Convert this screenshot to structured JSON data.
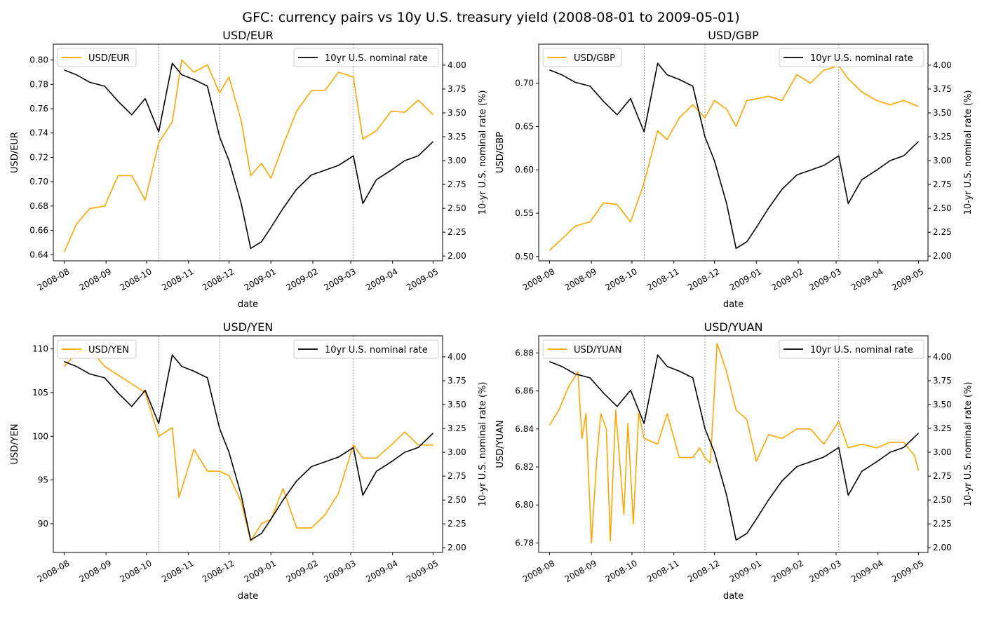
{
  "figure": {
    "title": "GFC: currency pairs vs 10y U.S. treasury yield (2008-08-01 to 2009-05-01)"
  },
  "colors": {
    "currency": "#ffa500",
    "rate": "#000000",
    "vline": "#808080"
  },
  "chart_data": [
    {
      "type": "line",
      "title": "USD/EUR",
      "xlabel": "date",
      "ylabel": "USD/EUR",
      "y2label": "10-yr U.S. nominal rate (%)",
      "x_ticks": [
        "2008-08",
        "2008-09",
        "2008-10",
        "2008-11",
        "2008-12",
        "2009-01",
        "2009-02",
        "2009-03",
        "2009-04",
        "2009-05"
      ],
      "y_ticks": [
        "0.64",
        "0.66",
        "0.68",
        "0.70",
        "0.72",
        "0.74",
        "0.76",
        "0.78",
        "0.80"
      ],
      "y2_ticks": [
        "2.00",
        "2.25",
        "2.50",
        "2.75",
        "3.00",
        "3.25",
        "3.50",
        "3.75",
        "4.00"
      ],
      "ylim": [
        0.635,
        0.813
      ],
      "y2lim": [
        1.95,
        4.22
      ],
      "legend_left": "top-left",
      "legend_right": "top-right",
      "vlines": [
        "2008-10-10",
        "2008-11-24",
        "2009-03-03"
      ],
      "series": [
        {
          "name": "USD/EUR",
          "axis": "left",
          "x": [
            "2008-08-01",
            "2008-08-10",
            "2008-08-20",
            "2008-08-31",
            "2008-09-10",
            "2008-09-20",
            "2008-09-30",
            "2008-10-10",
            "2008-10-20",
            "2008-10-27",
            "2008-11-05",
            "2008-11-15",
            "2008-11-24",
            "2008-12-01",
            "2008-12-10",
            "2008-12-17",
            "2008-12-25",
            "2009-01-01",
            "2009-01-10",
            "2009-01-20",
            "2009-01-31",
            "2009-02-10",
            "2009-02-20",
            "2009-03-03",
            "2009-03-10",
            "2009-03-20",
            "2009-03-31",
            "2009-04-10",
            "2009-04-20",
            "2009-05-01"
          ],
          "y": [
            0.642,
            0.665,
            0.678,
            0.68,
            0.705,
            0.705,
            0.685,
            0.732,
            0.749,
            0.8,
            0.79,
            0.796,
            0.773,
            0.786,
            0.75,
            0.705,
            0.715,
            0.703,
            0.73,
            0.758,
            0.775,
            0.775,
            0.79,
            0.786,
            0.735,
            0.742,
            0.758,
            0.757,
            0.767,
            0.755
          ]
        },
        {
          "name": "10yr U.S. nominal rate",
          "axis": "right",
          "x": [
            "2008-08-01",
            "2008-08-10",
            "2008-08-20",
            "2008-08-31",
            "2008-09-10",
            "2008-09-20",
            "2008-09-30",
            "2008-10-10",
            "2008-10-20",
            "2008-10-27",
            "2008-11-05",
            "2008-11-15",
            "2008-11-24",
            "2008-12-01",
            "2008-12-10",
            "2008-12-17",
            "2008-12-25",
            "2009-01-01",
            "2009-01-10",
            "2009-01-20",
            "2009-01-31",
            "2009-02-10",
            "2009-02-20",
            "2009-03-03",
            "2009-03-10",
            "2009-03-20",
            "2009-03-31",
            "2009-04-10",
            "2009-04-20",
            "2009-05-01"
          ],
          "y": [
            3.95,
            3.9,
            3.82,
            3.78,
            3.62,
            3.48,
            3.65,
            3.3,
            4.02,
            3.9,
            3.85,
            3.78,
            3.25,
            3.0,
            2.55,
            2.08,
            2.15,
            2.3,
            2.5,
            2.7,
            2.85,
            2.9,
            2.95,
            3.05,
            2.55,
            2.8,
            2.9,
            3.0,
            3.05,
            3.2
          ]
        }
      ]
    },
    {
      "type": "line",
      "title": "USD/GBP",
      "xlabel": "date",
      "ylabel": "USD/GBP",
      "y2label": "10-yr U.S. nominal rate (%)",
      "x_ticks": [
        "2008-08",
        "2008-09",
        "2008-10",
        "2008-11",
        "2008-12",
        "2009-01",
        "2009-02",
        "2009-03",
        "2009-04",
        "2009-05"
      ],
      "y_ticks": [
        "0.50",
        "0.55",
        "0.60",
        "0.65",
        "0.70"
      ],
      "y2_ticks": [
        "2.00",
        "2.25",
        "2.50",
        "2.75",
        "3.00",
        "3.25",
        "3.50",
        "3.75",
        "4.00"
      ],
      "ylim": [
        0.495,
        0.745
      ],
      "y2lim": [
        1.95,
        4.22
      ],
      "legend_left": "top-left",
      "legend_right": "top-right",
      "vlines": [
        "2008-10-10",
        "2008-11-24",
        "2009-03-03"
      ],
      "series": [
        {
          "name": "USD/GBP",
          "axis": "left",
          "x": [
            "2008-08-01",
            "2008-08-10",
            "2008-08-20",
            "2008-08-31",
            "2008-09-10",
            "2008-09-20",
            "2008-09-30",
            "2008-10-10",
            "2008-10-20",
            "2008-10-27",
            "2008-11-05",
            "2008-11-15",
            "2008-11-24",
            "2008-12-01",
            "2008-12-10",
            "2008-12-17",
            "2008-12-25",
            "2009-01-01",
            "2009-01-10",
            "2009-01-20",
            "2009-01-31",
            "2009-02-10",
            "2009-02-20",
            "2009-03-03",
            "2009-03-10",
            "2009-03-20",
            "2009-03-31",
            "2009-04-10",
            "2009-04-20",
            "2009-05-01"
          ],
          "y": [
            0.507,
            0.52,
            0.535,
            0.54,
            0.562,
            0.56,
            0.54,
            0.585,
            0.645,
            0.635,
            0.66,
            0.675,
            0.66,
            0.68,
            0.67,
            0.65,
            0.68,
            0.682,
            0.685,
            0.68,
            0.71,
            0.7,
            0.715,
            0.72,
            0.705,
            0.69,
            0.68,
            0.675,
            0.68,
            0.673
          ]
        },
        {
          "name": "10yr U.S. nominal rate",
          "axis": "right",
          "x": [
            "2008-08-01",
            "2008-08-10",
            "2008-08-20",
            "2008-08-31",
            "2008-09-10",
            "2008-09-20",
            "2008-09-30",
            "2008-10-10",
            "2008-10-20",
            "2008-10-27",
            "2008-11-05",
            "2008-11-15",
            "2008-11-24",
            "2008-12-01",
            "2008-12-10",
            "2008-12-17",
            "2008-12-25",
            "2009-01-01",
            "2009-01-10",
            "2009-01-20",
            "2009-01-31",
            "2009-02-10",
            "2009-02-20",
            "2009-03-03",
            "2009-03-10",
            "2009-03-20",
            "2009-03-31",
            "2009-04-10",
            "2009-04-20",
            "2009-05-01"
          ],
          "y": [
            3.95,
            3.9,
            3.82,
            3.78,
            3.62,
            3.48,
            3.65,
            3.3,
            4.02,
            3.9,
            3.85,
            3.78,
            3.25,
            3.0,
            2.55,
            2.08,
            2.15,
            2.3,
            2.5,
            2.7,
            2.85,
            2.9,
            2.95,
            3.05,
            2.55,
            2.8,
            2.9,
            3.0,
            3.05,
            3.2
          ]
        }
      ]
    },
    {
      "type": "line",
      "title": "USD/YEN",
      "xlabel": "date",
      "ylabel": "USD/YEN",
      "y2label": "10-yr U.S. nominal rate (%)",
      "x_ticks": [
        "2008-08",
        "2008-09",
        "2008-10",
        "2008-11",
        "2008-12",
        "2009-01",
        "2009-02",
        "2009-03",
        "2009-04",
        "2009-05"
      ],
      "y_ticks": [
        "90",
        "95",
        "100",
        "105",
        "110"
      ],
      "y2_ticks": [
        "2.00",
        "2.25",
        "2.50",
        "2.75",
        "3.00",
        "3.25",
        "3.50",
        "3.75",
        "4.00"
      ],
      "ylim": [
        86.7,
        111.5
      ],
      "y2lim": [
        1.95,
        4.22
      ],
      "legend_left": "top-left",
      "legend_right": "top-right",
      "vlines": [
        "2008-10-10",
        "2008-11-24",
        "2009-03-03"
      ],
      "series": [
        {
          "name": "USD/YEN",
          "axis": "left",
          "x": [
            "2008-08-01",
            "2008-08-10",
            "2008-08-20",
            "2008-08-31",
            "2008-09-10",
            "2008-09-20",
            "2008-09-30",
            "2008-10-10",
            "2008-10-20",
            "2008-10-25",
            "2008-11-05",
            "2008-11-15",
            "2008-11-24",
            "2008-12-01",
            "2008-12-10",
            "2008-12-17",
            "2008-12-25",
            "2009-01-01",
            "2009-01-10",
            "2009-01-20",
            "2009-01-31",
            "2009-02-10",
            "2009-02-20",
            "2009-03-03",
            "2009-03-10",
            "2009-03-20",
            "2009-03-31",
            "2009-04-10",
            "2009-04-20",
            "2009-05-01"
          ],
          "y": [
            108.0,
            109.5,
            110.0,
            108.0,
            107.0,
            106.0,
            105.0,
            100.0,
            101.0,
            93.0,
            98.5,
            96.0,
            96.0,
            95.5,
            92.5,
            88.0,
            90.0,
            90.5,
            94.0,
            89.5,
            89.5,
            91.0,
            93.5,
            99.0,
            97.5,
            97.5,
            99.0,
            100.5,
            99.0,
            99.0
          ]
        },
        {
          "name": "10yr U.S. nominal rate",
          "axis": "right",
          "x": [
            "2008-08-01",
            "2008-08-10",
            "2008-08-20",
            "2008-08-31",
            "2008-09-10",
            "2008-09-20",
            "2008-09-30",
            "2008-10-10",
            "2008-10-20",
            "2008-10-27",
            "2008-11-05",
            "2008-11-15",
            "2008-11-24",
            "2008-12-01",
            "2008-12-10",
            "2008-12-17",
            "2008-12-25",
            "2009-01-01",
            "2009-01-10",
            "2009-01-20",
            "2009-01-31",
            "2009-02-10",
            "2009-02-20",
            "2009-03-03",
            "2009-03-10",
            "2009-03-20",
            "2009-03-31",
            "2009-04-10",
            "2009-04-20",
            "2009-05-01"
          ],
          "y": [
            3.95,
            3.9,
            3.82,
            3.78,
            3.62,
            3.48,
            3.65,
            3.3,
            4.02,
            3.9,
            3.85,
            3.78,
            3.25,
            3.0,
            2.55,
            2.08,
            2.15,
            2.3,
            2.5,
            2.7,
            2.85,
            2.9,
            2.95,
            3.05,
            2.55,
            2.8,
            2.9,
            3.0,
            3.05,
            3.2
          ]
        }
      ]
    },
    {
      "type": "line",
      "title": "USD/YUAN",
      "xlabel": "date",
      "ylabel": "USD/YUAN",
      "y2label": "10-yr U.S. nominal rate (%)",
      "x_ticks": [
        "2008-08",
        "2008-09",
        "2008-10",
        "2008-11",
        "2008-12",
        "2009-01",
        "2009-02",
        "2009-03",
        "2009-04",
        "2009-05"
      ],
      "y_ticks": [
        "6.78",
        "6.80",
        "6.82",
        "6.84",
        "6.86",
        "6.88"
      ],
      "y2_ticks": [
        "2.00",
        "2.25",
        "2.50",
        "2.75",
        "3.00",
        "3.25",
        "3.50",
        "3.75",
        "4.00"
      ],
      "ylim": [
        6.775,
        6.889
      ],
      "y2lim": [
        1.95,
        4.22
      ],
      "legend_left": "top-left",
      "legend_right": "top-right",
      "vlines": [
        "2008-10-10",
        "2008-11-24",
        "2009-03-03"
      ],
      "series": [
        {
          "name": "USD/YUAN",
          "axis": "left",
          "x": [
            "2008-08-01",
            "2008-08-08",
            "2008-08-15",
            "2008-08-22",
            "2008-08-25",
            "2008-08-28",
            "2008-09-01",
            "2008-09-05",
            "2008-09-08",
            "2008-09-12",
            "2008-09-15",
            "2008-09-19",
            "2008-09-25",
            "2008-09-28",
            "2008-10-02",
            "2008-10-06",
            "2008-10-10",
            "2008-10-20",
            "2008-10-27",
            "2008-11-05",
            "2008-11-15",
            "2008-11-20",
            "2008-11-24",
            "2008-11-28",
            "2008-12-03",
            "2008-12-10",
            "2008-12-17",
            "2008-12-25",
            "2009-01-01",
            "2009-01-10",
            "2009-01-20",
            "2009-01-31",
            "2009-02-10",
            "2009-02-20",
            "2009-03-03",
            "2009-03-10",
            "2009-03-20",
            "2009-03-31",
            "2009-04-10",
            "2009-04-20",
            "2009-04-28",
            "2009-05-01"
          ],
          "y": [
            6.842,
            6.85,
            6.862,
            6.87,
            6.835,
            6.848,
            6.78,
            6.825,
            6.848,
            6.84,
            6.781,
            6.85,
            6.795,
            6.843,
            6.79,
            6.848,
            6.835,
            6.832,
            6.848,
            6.825,
            6.825,
            6.83,
            6.825,
            6.822,
            6.885,
            6.87,
            6.85,
            6.845,
            6.823,
            6.837,
            6.835,
            6.84,
            6.84,
            6.832,
            6.844,
            6.83,
            6.832,
            6.83,
            6.833,
            6.833,
            6.826,
            6.818
          ]
        },
        {
          "name": "10yr U.S. nominal rate",
          "axis": "right",
          "x": [
            "2008-08-01",
            "2008-08-10",
            "2008-08-20",
            "2008-08-31",
            "2008-09-10",
            "2008-09-20",
            "2008-09-30",
            "2008-10-10",
            "2008-10-20",
            "2008-10-27",
            "2008-11-05",
            "2008-11-15",
            "2008-11-24",
            "2008-12-01",
            "2008-12-10",
            "2008-12-17",
            "2008-12-25",
            "2009-01-01",
            "2009-01-10",
            "2009-01-20",
            "2009-01-31",
            "2009-02-10",
            "2009-02-20",
            "2009-03-03",
            "2009-03-10",
            "2009-03-20",
            "2009-03-31",
            "2009-04-10",
            "2009-04-20",
            "2009-05-01"
          ],
          "y": [
            3.95,
            3.9,
            3.82,
            3.78,
            3.62,
            3.48,
            3.65,
            3.3,
            4.02,
            3.9,
            3.85,
            3.78,
            3.25,
            3.0,
            2.55,
            2.08,
            2.15,
            2.3,
            2.5,
            2.7,
            2.85,
            2.9,
            2.95,
            3.05,
            2.55,
            2.8,
            2.9,
            3.0,
            3.05,
            3.2
          ]
        }
      ]
    }
  ]
}
